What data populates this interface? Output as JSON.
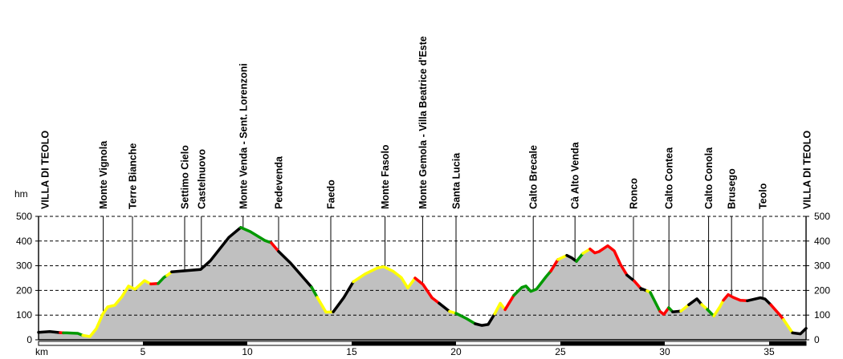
{
  "chart_data": {
    "type": "area",
    "x_unit_label": "km",
    "y_unit_label": "hm",
    "x_ticks": [
      5,
      10,
      15,
      20,
      25,
      30,
      35
    ],
    "y_ticks": [
      0,
      100,
      200,
      300,
      400,
      500
    ],
    "x_range": [
      0,
      36.77
    ],
    "y_range": [
      0,
      500
    ],
    "grid": "dashed-horizontal",
    "legend_position": "none",
    "colors": {
      "fill": "#c0c0c0",
      "axis": "#000000",
      "k": "#000000",
      "y": "#ffff00",
      "r": "#ff0000",
      "g": "#009900"
    },
    "distance_bar": {
      "interval_km": 5,
      "pattern": [
        "white",
        "black"
      ]
    },
    "waypoints": [
      {
        "label": "VILLA DI TEOLO",
        "km": 0.3,
        "line": false
      },
      {
        "label": "Monte Vignola",
        "km": 3.1,
        "line": true
      },
      {
        "label": "Terre Bianche",
        "km": 4.5,
        "line": true
      },
      {
        "label": "Settimo Cielo",
        "km": 7.0,
        "line": true
      },
      {
        "label": "Castelnuovo",
        "km": 7.8,
        "line": true
      },
      {
        "label": "Monte Venda - Sent. Lorenzoni",
        "km": 9.8,
        "line": true
      },
      {
        "label": "Pedevenda",
        "km": 11.5,
        "line": true
      },
      {
        "label": "Faedo",
        "km": 14.0,
        "line": true
      },
      {
        "label": "Monte Fasolo",
        "km": 16.6,
        "line": true
      },
      {
        "label": "Monte Gemola - Villa Beatrice d'Este",
        "km": 18.4,
        "line": true
      },
      {
        "label": "Santa Lucia",
        "km": 20.0,
        "line": true
      },
      {
        "label": "Calto Brecale",
        "km": 23.7,
        "line": true
      },
      {
        "label": "Cà Alto Venda",
        "km": 25.7,
        "line": true
      },
      {
        "label": "Ronco",
        "km": 28.5,
        "line": true
      },
      {
        "label": "Calto Contea",
        "km": 30.2,
        "line": true
      },
      {
        "label": "Calto Conola",
        "km": 32.1,
        "line": true
      },
      {
        "label": "Brusego",
        "km": 33.2,
        "line": true
      },
      {
        "label": "Teolo",
        "km": 34.7,
        "line": true
      },
      {
        "label": "VILLA DI TEOLO",
        "km": 36.8,
        "line": false
      }
    ],
    "profile": [
      [
        0,
        30,
        "k"
      ],
      [
        0.54,
        33,
        "k"
      ],
      [
        1.04,
        29,
        "r"
      ],
      [
        1.19,
        28,
        "g"
      ],
      [
        1.35,
        28,
        "g"
      ],
      [
        1.88,
        26,
        "g"
      ],
      [
        2.12,
        18,
        "y"
      ],
      [
        2.46,
        13,
        "y"
      ],
      [
        2.77,
        45,
        "y"
      ],
      [
        3.08,
        105,
        "y"
      ],
      [
        3.31,
        133,
        "y"
      ],
      [
        3.65,
        140,
        "y"
      ],
      [
        4.0,
        175,
        "y"
      ],
      [
        4.31,
        218,
        "y"
      ],
      [
        4.62,
        205,
        "y"
      ],
      [
        5.08,
        240,
        "y"
      ],
      [
        5.38,
        226,
        "r"
      ],
      [
        5.73,
        228,
        "g"
      ],
      [
        6.0,
        252,
        "g"
      ],
      [
        6.15,
        260,
        "y"
      ],
      [
        6.38,
        275,
        "k"
      ],
      [
        7.77,
        285,
        "k"
      ],
      [
        8.23,
        320,
        "k"
      ],
      [
        9.12,
        415,
        "k"
      ],
      [
        9.69,
        455,
        "g"
      ],
      [
        10.15,
        438,
        "g"
      ],
      [
        10.85,
        402,
        "g"
      ],
      [
        11.15,
        393,
        "r"
      ],
      [
        11.5,
        358,
        "k"
      ],
      [
        12.08,
        310,
        "k"
      ],
      [
        12.65,
        255,
        "k"
      ],
      [
        13.08,
        213,
        "g"
      ],
      [
        13.35,
        172,
        "y"
      ],
      [
        13.77,
        112,
        "y"
      ],
      [
        14.12,
        113,
        "k"
      ],
      [
        14.62,
        170,
        "k"
      ],
      [
        15.08,
        235,
        "y"
      ],
      [
        15.65,
        267,
        "y"
      ],
      [
        16.23,
        291,
        "y"
      ],
      [
        16.54,
        296,
        "y"
      ],
      [
        17.0,
        277,
        "y"
      ],
      [
        17.38,
        252,
        "y"
      ],
      [
        17.69,
        210,
        "y"
      ],
      [
        18.04,
        250,
        "r"
      ],
      [
        18.42,
        224,
        "r"
      ],
      [
        18.85,
        170,
        "r"
      ],
      [
        19.19,
        148,
        "k"
      ],
      [
        19.69,
        115,
        "y"
      ],
      [
        20.0,
        107,
        "g"
      ],
      [
        20.46,
        88,
        "g"
      ],
      [
        20.92,
        65,
        "k"
      ],
      [
        21.23,
        58,
        "k"
      ],
      [
        21.54,
        62,
        "k"
      ],
      [
        21.85,
        105,
        "y"
      ],
      [
        22.12,
        148,
        "y"
      ],
      [
        22.35,
        122,
        "r"
      ],
      [
        22.77,
        180,
        "g"
      ],
      [
        23.15,
        212,
        "g"
      ],
      [
        23.35,
        218,
        "g"
      ],
      [
        23.58,
        196,
        "g"
      ],
      [
        23.85,
        205,
        "g"
      ],
      [
        24.31,
        255,
        "g"
      ],
      [
        24.54,
        278,
        "r"
      ],
      [
        24.88,
        325,
        "y"
      ],
      [
        25.31,
        342,
        "k"
      ],
      [
        25.54,
        332,
        "k"
      ],
      [
        25.77,
        318,
        "g"
      ],
      [
        26.08,
        350,
        "y"
      ],
      [
        26.42,
        368,
        "r"
      ],
      [
        26.65,
        352,
        "r"
      ],
      [
        26.85,
        357,
        "r"
      ],
      [
        27.27,
        381,
        "r"
      ],
      [
        27.58,
        360,
        "r"
      ],
      [
        27.88,
        305,
        "r"
      ],
      [
        28.19,
        262,
        "k"
      ],
      [
        28.54,
        238,
        "r"
      ],
      [
        28.85,
        208,
        "k"
      ],
      [
        29.15,
        198,
        "y"
      ],
      [
        29.31,
        192,
        "g"
      ],
      [
        29.77,
        115,
        "r"
      ],
      [
        29.96,
        103,
        "r"
      ],
      [
        30.19,
        130,
        "g"
      ],
      [
        30.38,
        113,
        "k"
      ],
      [
        30.77,
        116,
        "y"
      ],
      [
        31.15,
        142,
        "k"
      ],
      [
        31.54,
        166,
        "k"
      ],
      [
        31.77,
        143,
        "y"
      ],
      [
        32.04,
        123,
        "g"
      ],
      [
        32.35,
        96,
        "y"
      ],
      [
        32.65,
        135,
        "y"
      ],
      [
        32.81,
        160,
        "r"
      ],
      [
        33.04,
        183,
        "r"
      ],
      [
        33.27,
        172,
        "r"
      ],
      [
        33.62,
        160,
        "r"
      ],
      [
        33.96,
        158,
        "k"
      ],
      [
        34.58,
        170,
        "k"
      ],
      [
        34.81,
        165,
        "k"
      ],
      [
        35.08,
        142,
        "r"
      ],
      [
        35.54,
        98,
        "r"
      ],
      [
        35.69,
        82,
        "y"
      ],
      [
        36.12,
        28,
        "k"
      ],
      [
        36.5,
        24,
        "k"
      ],
      [
        36.77,
        46,
        "k"
      ]
    ]
  }
}
